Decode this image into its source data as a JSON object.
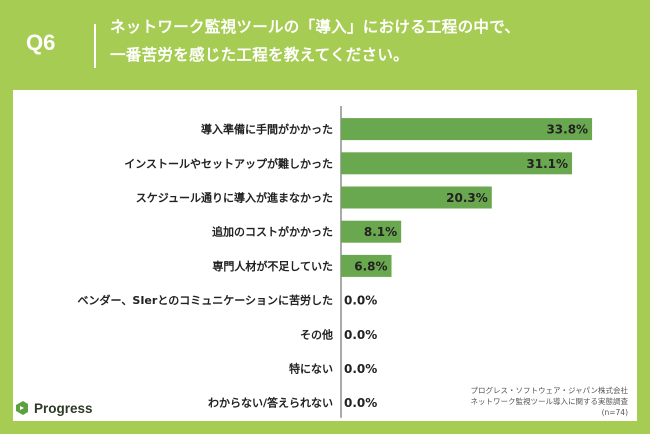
{
  "header": {
    "question_number": "Q6",
    "title_line1": "ネットワーク監視ツールの「導入」における工程の中で、",
    "title_line2": "一番苦労を感じた工程を教えてください。"
  },
  "colors": {
    "background": "#a7cc53",
    "bar": "#6aa84f",
    "panel": "#ffffff"
  },
  "logo": {
    "icon": "progress-logo-icon",
    "text": "Progress"
  },
  "source": {
    "line1": "プログレス・ソフトウェア・ジャパン株式会社",
    "line2": "ネットワーク監視ツール導入に関する実態調査",
    "line3": "(n=74)"
  },
  "chart_data": {
    "type": "bar",
    "orientation": "horizontal",
    "categories": [
      "導入準備に手間がかかった",
      "インストールやセットアップが難しかった",
      "スケジュール通りに導入が進まなかった",
      "追加のコストがかかった",
      "専門人材が不足していた",
      "ベンダー、SIerとのコミュニケーションに苦労した",
      "その他",
      "特にない",
      "わからない/答えられない"
    ],
    "values": [
      33.8,
      31.1,
      20.3,
      8.1,
      6.8,
      0.0,
      0.0,
      0.0,
      0.0
    ],
    "value_labels": [
      "33.8%",
      "31.1%",
      "20.3%",
      "8.1%",
      "6.8%",
      "0.0%",
      "0.0%",
      "0.0%",
      "0.0%"
    ],
    "xlim": [
      0,
      35
    ],
    "grid": false,
    "legend": "none"
  }
}
